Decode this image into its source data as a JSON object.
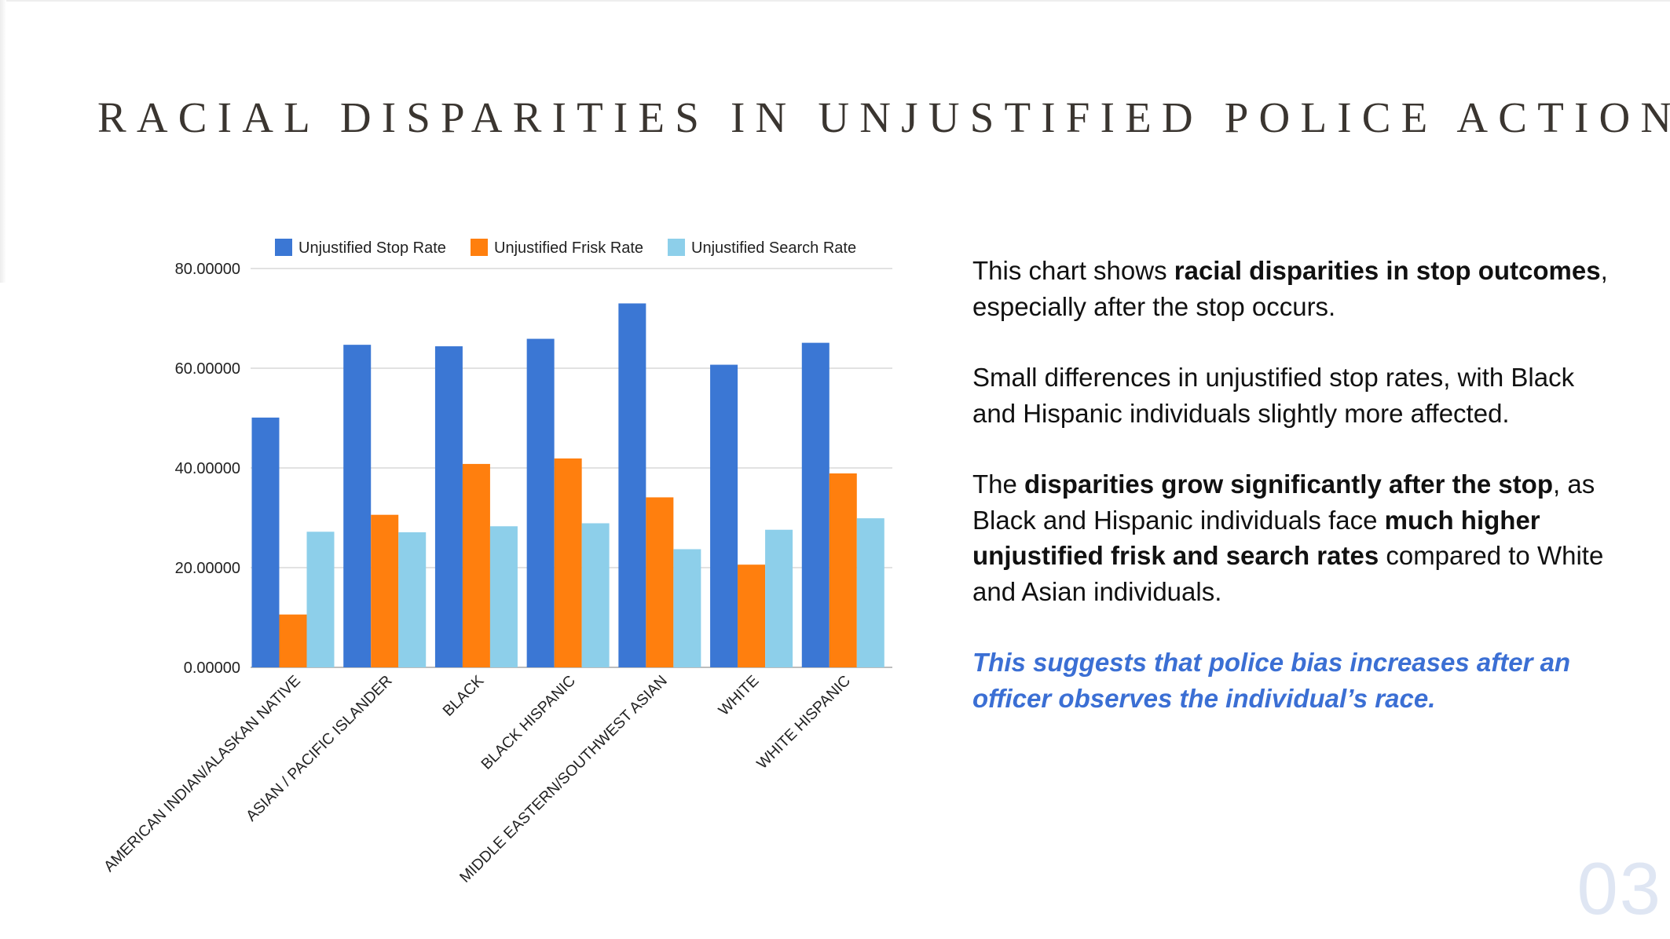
{
  "slide": {
    "title": "RACIAL DISPARITIES IN UNJUSTIFIED POLICE ACTIONS",
    "page_number": "03"
  },
  "text": {
    "p1_a": "This chart shows ",
    "p1_b": "racial disparities in stop outcomes",
    "p1_c": ", especially after the stop occurs.",
    "p2": "Small differences in unjustified stop rates, with Black and Hispanic individuals slightly more affected.",
    "p3_a": "The ",
    "p3_b": "disparities grow significantly after the stop",
    "p3_c": ", as Black and Hispanic individuals face ",
    "p3_d": "much higher unjustified frisk and search rates",
    "p3_e": " compared to White and Asian individuals.",
    "p4": "This suggests that police bias increases after an officer observes the individual’s race."
  },
  "colors": {
    "stop": "#3b77d4",
    "frisk": "#ff7f0e",
    "search": "#8dcfea",
    "conclusion": "#3b6fd4",
    "grid": "#d9d9d9"
  },
  "chart_data": {
    "type": "bar",
    "title": "",
    "xlabel": "",
    "ylabel": "",
    "ylim": [
      0,
      80
    ],
    "yticks": [
      0,
      20,
      40,
      60,
      80
    ],
    "ytick_labels": [
      "0.00000",
      "20.00000",
      "40.00000",
      "60.00000",
      "80.00000"
    ],
    "legend_position": "top",
    "grid": true,
    "categories": [
      "AMERICAN INDIAN/ALASKAN NATIVE",
      "ASIAN / PACIFIC ISLANDER",
      "BLACK",
      "BLACK HISPANIC",
      "MIDDLE EASTERN/SOUTHWEST ASIAN",
      "WHITE",
      "WHITE HISPANIC"
    ],
    "series": [
      {
        "name": "Unjustified Stop Rate",
        "color": "#3b77d4",
        "values": [
          50.1,
          64.7,
          64.4,
          65.9,
          73.0,
          60.7,
          65.1
        ]
      },
      {
        "name": "Unjustified Frisk Rate",
        "color": "#ff7f0e",
        "values": [
          10.6,
          30.6,
          40.8,
          41.9,
          34.1,
          20.6,
          38.9
        ]
      },
      {
        "name": "Unjustified Search Rate",
        "color": "#8dcfea",
        "values": [
          27.2,
          27.1,
          28.3,
          28.9,
          23.7,
          27.6,
          29.9
        ]
      }
    ]
  }
}
